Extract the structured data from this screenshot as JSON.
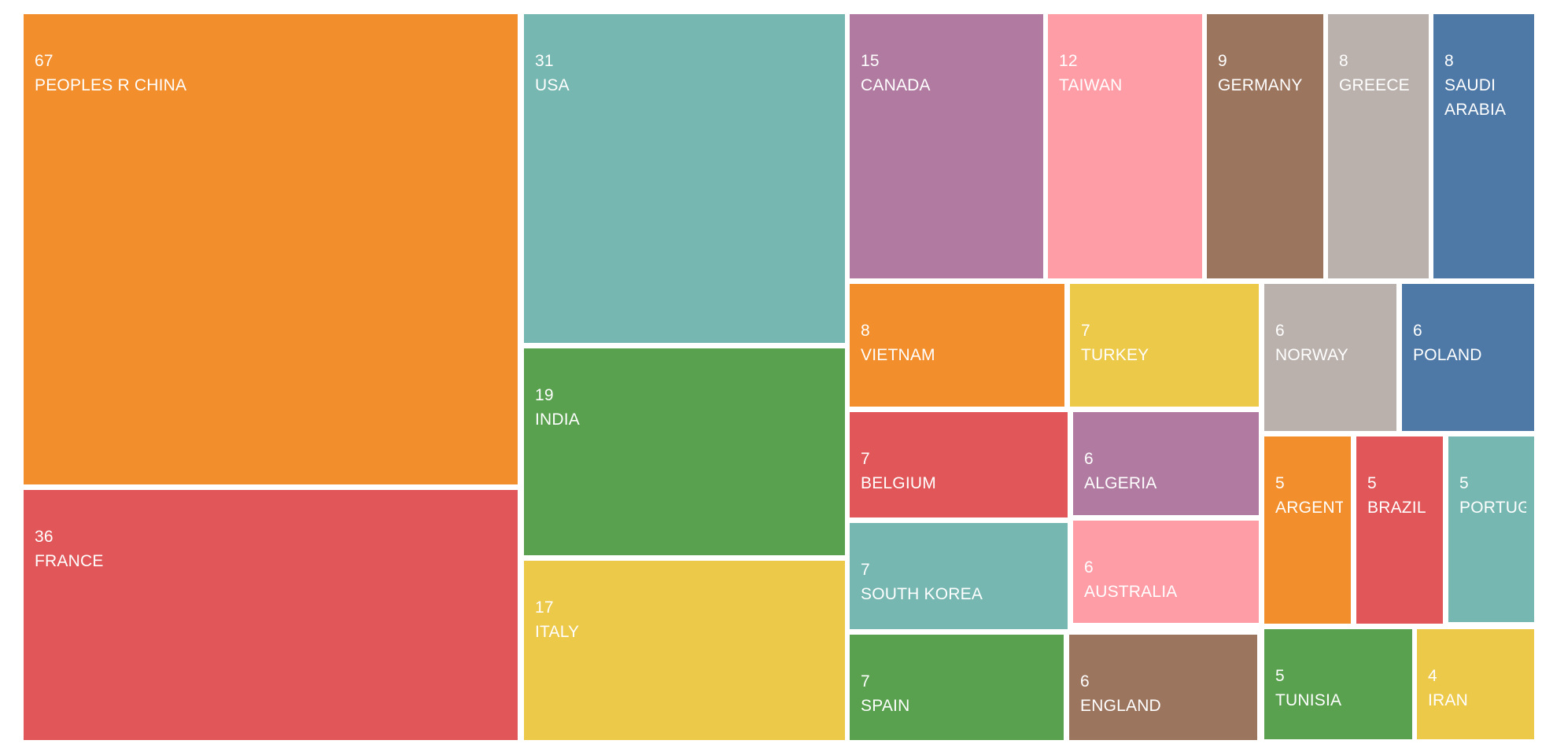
{
  "chart_data": {
    "type": "treemap",
    "title": "",
    "legend": "none",
    "background_color": "#FFFFFF",
    "text_color": "#FFFFFF",
    "items": [
      {
        "label": "PEOPLES R CHINA",
        "value": 67,
        "color": "#F28E2B"
      },
      {
        "label": "FRANCE",
        "value": 36,
        "color": "#E15759"
      },
      {
        "label": "USA",
        "value": 31,
        "color": "#76B7B2"
      },
      {
        "label": "INDIA",
        "value": 19,
        "color": "#59A14F"
      },
      {
        "label": "ITALY",
        "value": 17,
        "color": "#EDC949"
      },
      {
        "label": "CANADA",
        "value": 15,
        "color": "#B07AA1"
      },
      {
        "label": "TAIWAN",
        "value": 12,
        "color": "#FF9DA7"
      },
      {
        "label": "GERMANY",
        "value": 9,
        "color": "#9C755F"
      },
      {
        "label": "GREECE",
        "value": 8,
        "color": "#BAB0AC"
      },
      {
        "label": "SAUDI ARABIA",
        "value": 8,
        "color": "#4E79A7"
      },
      {
        "label": "VIETNAM",
        "value": 8,
        "color": "#F28E2B"
      },
      {
        "label": "TURKEY",
        "value": 7,
        "color": "#EDC949"
      },
      {
        "label": "NORWAY",
        "value": 6,
        "color": "#BAB0AC"
      },
      {
        "label": "POLAND",
        "value": 6,
        "color": "#4E79A7"
      },
      {
        "label": "BELGIUM",
        "value": 7,
        "color": "#E15759"
      },
      {
        "label": "ALGERIA",
        "value": 6,
        "color": "#B07AA1"
      },
      {
        "label": "SOUTH KOREA",
        "value": 7,
        "color": "#76B7B2"
      },
      {
        "label": "AUSTRALIA",
        "value": 6,
        "color": "#FF9DA7"
      },
      {
        "label": "SPAIN",
        "value": 7,
        "color": "#59A14F"
      },
      {
        "label": "ENGLAND",
        "value": 6,
        "color": "#9C755F"
      },
      {
        "label": "ARGENTINA",
        "value": 5,
        "color": "#F28E2B"
      },
      {
        "label": "BRAZIL",
        "value": 5,
        "color": "#E15759"
      },
      {
        "label": "PORTUGAL",
        "value": 5,
        "color": "#76B7B2"
      },
      {
        "label": "TUNISIA",
        "value": 5,
        "color": "#59A14F"
      },
      {
        "label": "IRAN",
        "value": 4,
        "color": "#EDC949"
      }
    ]
  }
}
